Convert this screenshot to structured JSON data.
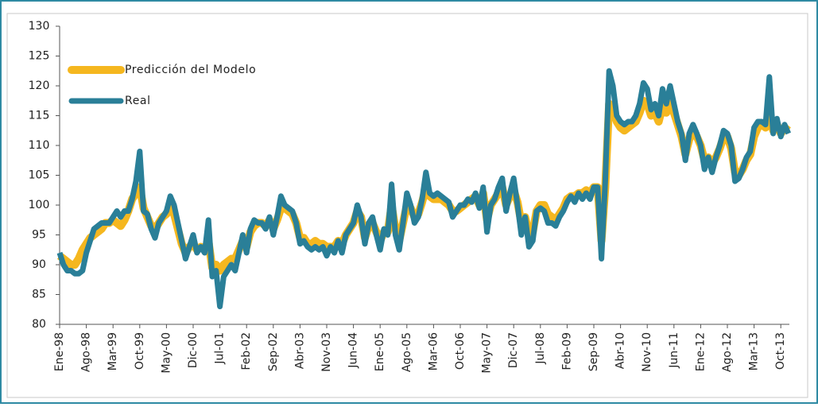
{
  "chart_data": {
    "type": "line",
    "categories": [
      "Ene-98",
      null,
      null,
      null,
      null,
      null,
      null,
      "Ago-98",
      null,
      null,
      null,
      null,
      null,
      null,
      "Mar-99",
      null,
      null,
      null,
      null,
      null,
      null,
      "Oct-99",
      null,
      null,
      null,
      null,
      null,
      null,
      "May-00",
      null,
      null,
      null,
      null,
      null,
      null,
      "Dic-00",
      null,
      null,
      null,
      null,
      null,
      null,
      "Jul-01",
      null,
      null,
      null,
      null,
      null,
      null,
      "Feb-02",
      null,
      null,
      null,
      null,
      null,
      null,
      "Sep-02",
      null,
      null,
      null,
      null,
      null,
      null,
      "Abr-03",
      null,
      null,
      null,
      null,
      null,
      null,
      "Nov-03",
      null,
      null,
      null,
      null,
      null,
      null,
      "Jun-04",
      null,
      null,
      null,
      null,
      null,
      null,
      "Ene-05",
      null,
      null,
      null,
      null,
      null,
      null,
      "Ago-05",
      null,
      null,
      null,
      null,
      null,
      null,
      "Mar-06",
      null,
      null,
      null,
      null,
      null,
      null,
      "Oct-06",
      null,
      null,
      null,
      null,
      null,
      null,
      "May-07",
      null,
      null,
      null,
      null,
      null,
      null,
      "Dic-07",
      null,
      null,
      null,
      null,
      null,
      null,
      "Jul-08",
      null,
      null,
      null,
      null,
      null,
      null,
      "Feb-09",
      null,
      null,
      null,
      null,
      null,
      null,
      "Sep-09",
      null,
      null,
      null,
      null,
      null,
      null,
      "Abr-10",
      null,
      null,
      null,
      null,
      null,
      null,
      "Nov-10",
      null,
      null,
      null,
      null,
      null,
      null,
      "Jun-11",
      null,
      null,
      null,
      null,
      null,
      null,
      "Ene-12",
      null,
      null,
      null,
      null,
      null,
      null,
      "Ago-12",
      null,
      null,
      null,
      null,
      null,
      null,
      "Mar-13",
      null,
      null,
      null,
      null,
      null,
      null,
      "Oct-13",
      null,
      null
    ],
    "series": [
      {
        "name": "Predicción del Modelo",
        "color": "#f5b71f",
        "values": [
          91.5,
          91,
          90.5,
          90,
          90,
          91,
          92.5,
          93.5,
          94.5,
          95,
          95.5,
          96,
          97,
          97,
          97.5,
          97,
          96.5,
          97.5,
          99,
          101,
          102,
          103,
          99.5,
          98,
          96.5,
          96,
          97,
          98,
          98.5,
          99.5,
          98.5,
          96,
          93.5,
          92,
          93,
          93.5,
          92.5,
          93,
          92.5,
          94,
          89.5,
          90,
          89,
          90,
          90.5,
          91,
          91,
          92.5,
          94,
          93,
          95.5,
          96.5,
          97,
          97,
          96.5,
          97.5,
          96,
          97.5,
          99.5,
          99.5,
          99,
          98.5,
          97,
          94.5,
          94.5,
          93.5,
          93.5,
          94,
          93.5,
          93.5,
          93,
          93,
          93,
          94,
          93.5,
          95,
          96,
          97,
          99,
          98,
          94.5,
          96.5,
          97,
          95.5,
          94,
          95.5,
          95.5,
          100,
          96,
          94,
          97,
          100,
          99.5,
          98,
          98.5,
          100.5,
          103,
          101.5,
          101,
          101,
          101,
          100.5,
          100,
          99,
          99,
          99.5,
          100,
          100.5,
          101,
          101.5,
          100,
          102,
          97.5,
          100,
          101,
          102,
          103,
          100,
          101.5,
          102.5,
          100.5,
          97,
          98,
          95,
          95.5,
          99,
          100,
          100,
          98.5,
          98,
          97.5,
          98.5,
          99.5,
          101,
          101.5,
          101.5,
          102,
          102,
          102.5,
          102,
          103,
          103,
          94,
          103,
          117,
          116,
          114,
          113,
          112.5,
          113,
          113.5,
          114,
          115.5,
          117.5,
          117,
          115,
          115.5,
          114,
          116.5,
          115.5,
          117,
          115.5,
          113.5,
          111.5,
          108.5,
          111,
          112.5,
          111.5,
          110,
          107.5,
          108,
          107,
          108,
          109.5,
          111.5,
          111.5,
          109.5,
          105.5,
          105,
          106,
          107.5,
          108.5,
          111.5,
          113,
          113.5,
          113,
          115,
          112.5,
          113.5,
          112,
          113,
          112.5
        ]
      },
      {
        "name": "Real",
        "color": "#2a7f98",
        "values": [
          92,
          90,
          89,
          89,
          88.5,
          88.5,
          89,
          92,
          94,
          96,
          96.5,
          97,
          97,
          97,
          98,
          99,
          98,
          99,
          99,
          101,
          104,
          109,
          99,
          98.5,
          96,
          94.5,
          97,
          98,
          99,
          101.5,
          100,
          97,
          94,
          91,
          93,
          95,
          92,
          93,
          92,
          97.5,
          88,
          89,
          83,
          88,
          89,
          90,
          89,
          92,
          95,
          92,
          96,
          97.5,
          97,
          97,
          96,
          98,
          95,
          98,
          101.5,
          100,
          99.5,
          99,
          97,
          93.5,
          94,
          93,
          92.5,
          93,
          92.5,
          93,
          91.5,
          93,
          92,
          94,
          92,
          95,
          96,
          97,
          100,
          98,
          93.5,
          97,
          98,
          95,
          92.5,
          96,
          95,
          103.5,
          95,
          92.5,
          97,
          102,
          100,
          97,
          98,
          101,
          105.5,
          102,
          101.5,
          102,
          101.5,
          101,
          100.5,
          98,
          99,
          100,
          100,
          101,
          100.5,
          102,
          99.5,
          103,
          95.5,
          100,
          101,
          103,
          104.5,
          99,
          102,
          104.5,
          100,
          95,
          98,
          93,
          94,
          99,
          99.5,
          99,
          97,
          97,
          96.5,
          98,
          99,
          100.5,
          101.5,
          100.5,
          102,
          101,
          102,
          101,
          103,
          103,
          91,
          104,
          122.5,
          120,
          115,
          114,
          113.5,
          114,
          114,
          115,
          117,
          120.5,
          119.5,
          116,
          117,
          115,
          119.5,
          117,
          120,
          117,
          114,
          112,
          107.5,
          112,
          113.5,
          112,
          110,
          106,
          108,
          105.5,
          108,
          110,
          112.5,
          112,
          110,
          104,
          104.5,
          106,
          108,
          109,
          113,
          114,
          114,
          113.5,
          121.5,
          112,
          114.5,
          111.5,
          113.5,
          112
        ]
      }
    ],
    "ylim": [
      80,
      130
    ],
    "yticks": [
      80,
      85,
      90,
      95,
      100,
      105,
      110,
      115,
      120,
      125,
      130
    ],
    "grid": false
  }
}
